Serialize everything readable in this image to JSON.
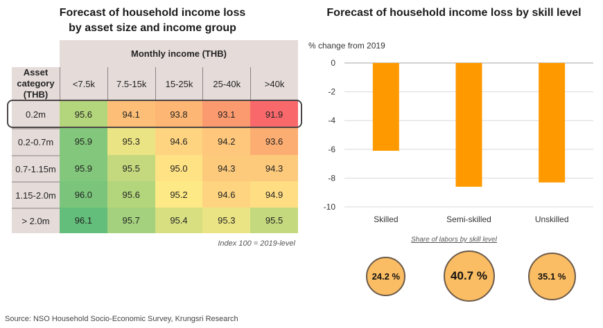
{
  "left": {
    "title_line1": "Forecast of household income loss",
    "title_line2": "by asset size and income group",
    "col_group_header": "Monthly income (THB)",
    "row_header": "Asset category (THB)",
    "columns": [
      "<7.5k",
      "7.5-15k",
      "15-25k",
      "25-40k",
      ">40k"
    ],
    "rows": [
      {
        "label": "0.2m",
        "values": [
          "95.6",
          "94.1",
          "93.8",
          "93.1",
          "91.9"
        ],
        "colors": [
          "#b3d57c",
          "#fdbf77",
          "#fdb674",
          "#fc9a6f",
          "#f9686b"
        ]
      },
      {
        "label": "0.2-0.7m",
        "values": [
          "95.9",
          "95.3",
          "94.6",
          "94.2",
          "93.6"
        ],
        "colors": [
          "#82c77b",
          "#ebe484",
          "#fed480",
          "#fec77b",
          "#fcad71"
        ]
      },
      {
        "label": "0.7-1.15m",
        "values": [
          "95.9",
          "95.5",
          "95.0",
          "94.3",
          "94.3"
        ],
        "colors": [
          "#82c77b",
          "#c4d97e",
          "#ffe284",
          "#fdca7c",
          "#fdca7c"
        ]
      },
      {
        "label": "1.15-2.0m",
        "values": [
          "96.0",
          "95.6",
          "95.2",
          "94.6",
          "94.9"
        ],
        "colors": [
          "#7ac57b",
          "#b3d57c",
          "#fde985",
          "#fed480",
          "#ffde83"
        ]
      },
      {
        "label": "> 2.0m",
        "values": [
          "96.1",
          "95.7",
          "95.4",
          "95.3",
          "95.5"
        ],
        "colors": [
          "#63be7b",
          "#a3d17d",
          "#d7df81",
          "#ebe484",
          "#c4d97e"
        ]
      }
    ],
    "highlighted_row": "0.2m",
    "note": "Index 100 = 2019-level"
  },
  "right": {
    "title": "Forecast of household income loss by skill level",
    "share_title": "Share of labors by skill level",
    "shares": [
      "24.2 %",
      "40.7 %",
      "35.1 %"
    ]
  },
  "source": "Source: NSO Household Socio-Economic Survey, Krungsri Research",
  "chart_data": [
    {
      "type": "heatmap",
      "title": "Forecast of household income loss by asset size and income group",
      "xlabel": "Monthly income (THB)",
      "ylabel": "Asset category (THB)",
      "x": [
        "<7.5k",
        "7.5-15k",
        "15-25k",
        "25-40k",
        ">40k"
      ],
      "y": [
        "0.2m",
        "0.2-0.7m",
        "0.7-1.15m",
        "1.15-2.0m",
        "> 2.0m"
      ],
      "values": [
        [
          95.6,
          94.1,
          93.8,
          93.1,
          91.9
        ],
        [
          95.9,
          95.3,
          94.6,
          94.2,
          93.6
        ],
        [
          95.9,
          95.5,
          95.0,
          94.3,
          94.3
        ],
        [
          96.0,
          95.6,
          95.2,
          94.6,
          94.9
        ],
        [
          96.1,
          95.7,
          95.4,
          95.3,
          95.5
        ]
      ],
      "annotation": "Index 100 = 2019-level",
      "colorscale": "red-yellow-green"
    },
    {
      "type": "bar",
      "title": "Forecast of household income loss by skill level",
      "ylabel": "% change from 2019",
      "xlabel": "",
      "categories": [
        "Skilled",
        "Semi-skilled",
        "Unskilled"
      ],
      "values": [
        -6.1,
        -8.6,
        -8.3
      ],
      "ylim": [
        -10,
        0
      ],
      "yticks": [
        0,
        -2,
        -4,
        -6,
        -8,
        -10
      ],
      "grid": true,
      "bar_color": "#ff9900",
      "legend": "none"
    },
    {
      "type": "bubble",
      "title": "Share of labors by skill level",
      "categories": [
        "Skilled",
        "Semi-skilled",
        "Unskilled"
      ],
      "values": [
        24.2,
        40.7,
        35.1
      ],
      "unit": "%"
    }
  ]
}
